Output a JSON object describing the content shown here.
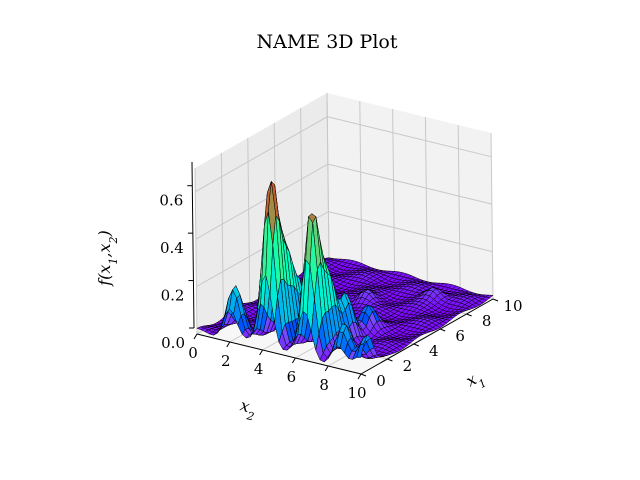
{
  "chart_data": {
    "type": "surface3d",
    "title": "NAME 3D Plot",
    "xlabel": "x_2",
    "ylabel": "x_1",
    "zlabel": "f(x_1, x_2)",
    "x_ticks": [
      "0",
      "2",
      "4",
      "6",
      "8",
      "10"
    ],
    "y_ticks": [
      "0",
      "2",
      "4",
      "6",
      "8",
      "10"
    ],
    "z_ticks": [
      "0.0",
      "0.2",
      "0.4",
      "0.6"
    ],
    "xlim": [
      0,
      10
    ],
    "ylim": [
      0,
      10
    ],
    "zlim": [
      0,
      0.7
    ],
    "colormap": "rainbow",
    "edge_color": "#000000",
    "grid": true,
    "peaks": [
      {
        "x1": 0.5,
        "x2": 4.2,
        "f": 0.7
      },
      {
        "x1": 0.6,
        "x2": 6.6,
        "f": 0.6
      },
      {
        "x1": 1.4,
        "x2": 4.3,
        "f": 0.35
      },
      {
        "x1": 1.5,
        "x2": 6.8,
        "f": 0.3
      },
      {
        "x1": 0.4,
        "x2": 2.0,
        "f": 0.22
      },
      {
        "x1": 2.3,
        "x2": 4.4,
        "f": 0.2
      },
      {
        "x1": 2.6,
        "x2": 7.0,
        "f": 0.2
      },
      {
        "x1": 0.5,
        "x2": 8.6,
        "f": 0.16
      },
      {
        "x1": 0.5,
        "x2": 10.0,
        "f": 0.14
      },
      {
        "x1": 3.6,
        "x2": 4.6,
        "f": 0.1
      },
      {
        "x1": 4.0,
        "x2": 7.2,
        "f": 0.1
      },
      {
        "x1": 5.0,
        "x2": 2.5,
        "f": 0.06
      },
      {
        "x1": 6.6,
        "x2": 5.0,
        "f": 0.05
      },
      {
        "x1": 8.5,
        "x2": 7.6,
        "f": 0.05
      }
    ]
  }
}
